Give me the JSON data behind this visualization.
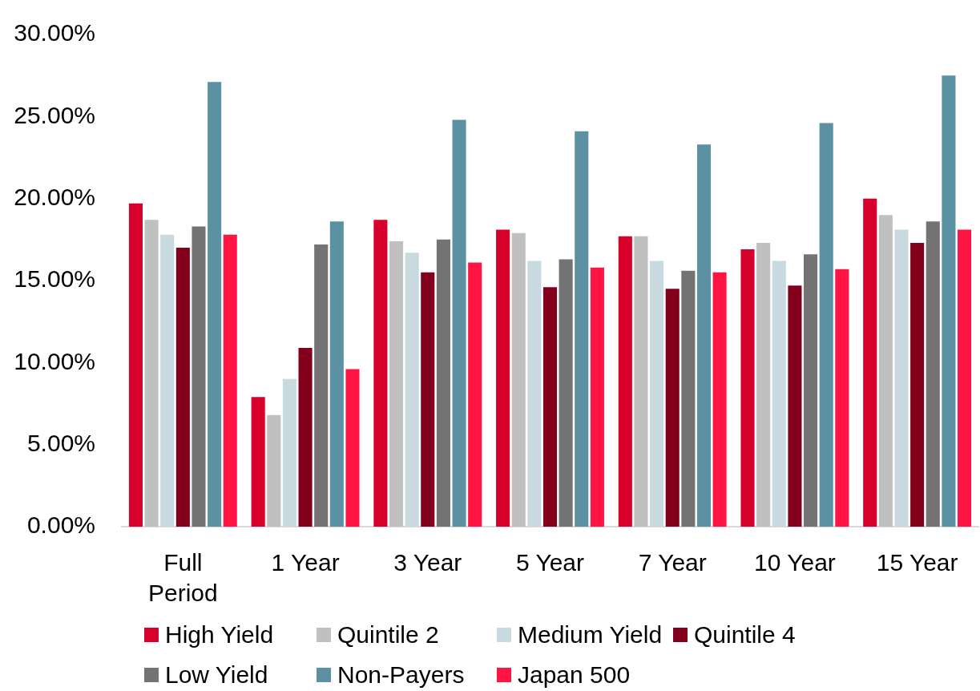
{
  "chart_data": {
    "type": "bar",
    "categories": [
      "Full Period",
      "1 Year",
      "3 Year",
      "5 Year",
      "7 Year",
      "10 Year",
      "15 Year"
    ],
    "series": [
      {
        "name": "High Yield",
        "color": "#d7002a",
        "values": [
          19.7,
          7.9,
          18.7,
          18.1,
          17.7,
          16.9,
          20.0
        ]
      },
      {
        "name": "Quintile 2",
        "color": "#c0c0c0",
        "values": [
          18.7,
          6.8,
          17.4,
          17.9,
          17.7,
          17.3,
          19.0
        ]
      },
      {
        "name": "Medium Yield",
        "color": "#c8dae0",
        "values": [
          17.8,
          9.0,
          16.7,
          16.2,
          16.2,
          16.2,
          18.1
        ]
      },
      {
        "name": "Quintile 4",
        "color": "#82001c",
        "values": [
          17.0,
          10.9,
          15.5,
          14.6,
          14.5,
          14.7,
          17.3
        ]
      },
      {
        "name": "Low Yield",
        "color": "#737373",
        "values": [
          18.3,
          17.2,
          17.5,
          16.3,
          15.6,
          16.6,
          18.6
        ]
      },
      {
        "name": "Non-Payers",
        "color": "#5b91a3",
        "values": [
          27.1,
          18.6,
          24.8,
          24.1,
          23.3,
          24.6,
          27.5
        ]
      },
      {
        "name": "Japan 500",
        "color": "#ff1443",
        "values": [
          17.8,
          9.6,
          16.1,
          15.8,
          15.5,
          15.7,
          18.1
        ]
      }
    ],
    "ylim": [
      0,
      30
    ],
    "yticks": [
      {
        "value": 0,
        "label": "0.00%"
      },
      {
        "value": 5,
        "label": "5.00%"
      },
      {
        "value": 10,
        "label": "10.00%"
      },
      {
        "value": 15,
        "label": "15.00%"
      },
      {
        "value": 20,
        "label": "20.00%"
      },
      {
        "value": 25,
        "label": "25.00%"
      },
      {
        "value": 30,
        "label": "30.00%"
      }
    ],
    "legend": "bottom"
  }
}
